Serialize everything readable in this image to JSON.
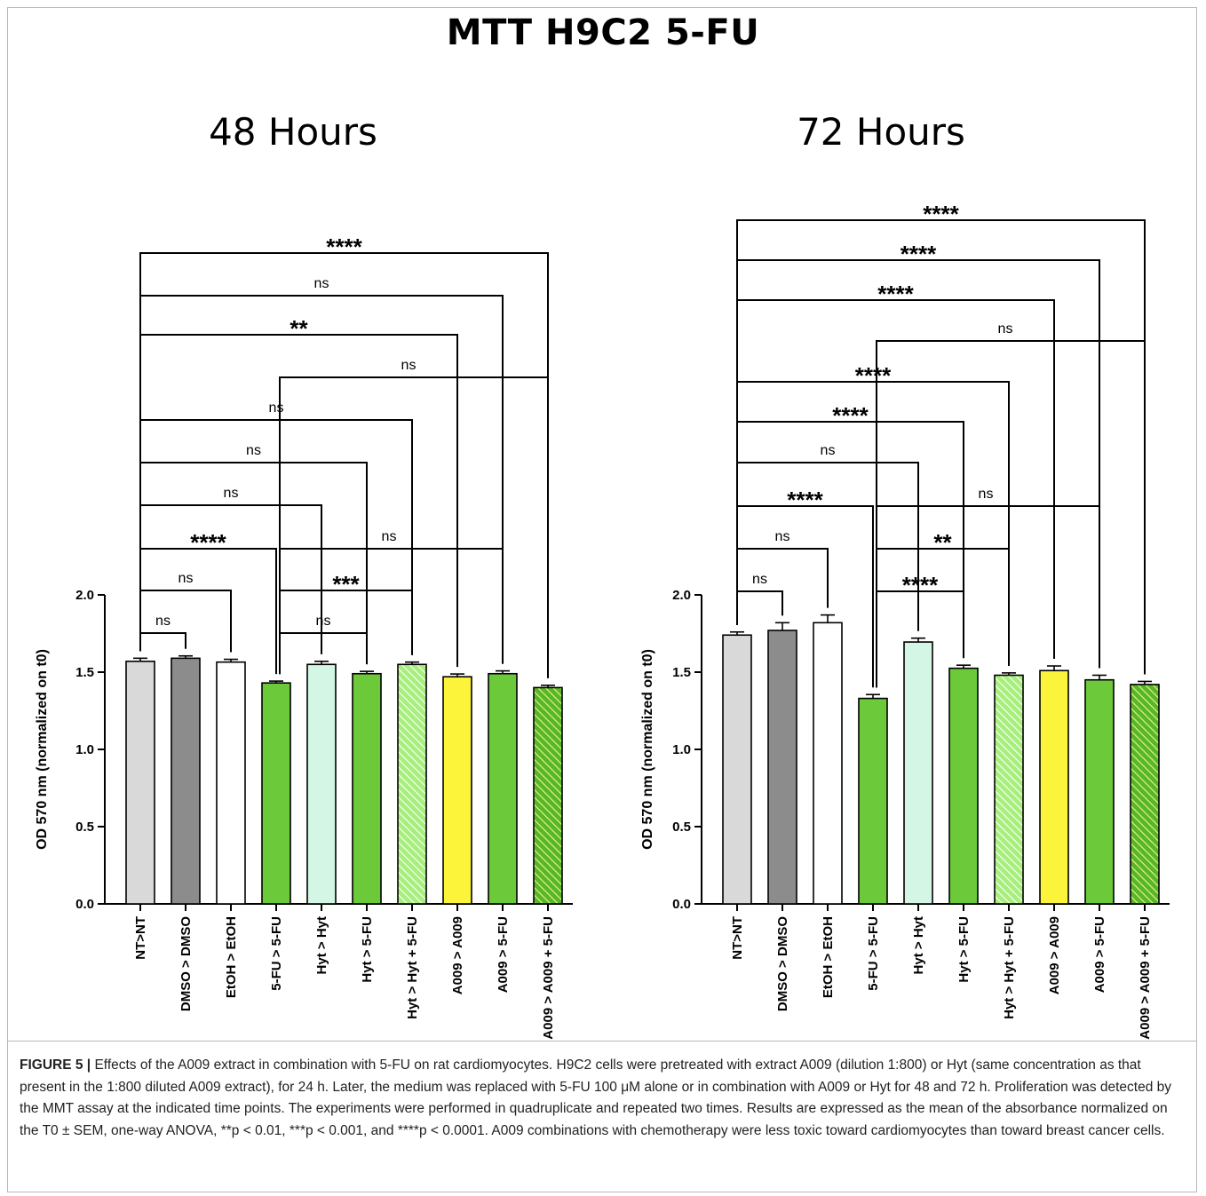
{
  "figure": {
    "title": "MTT H9C2 5-FU",
    "caption_label": "FIGURE 5 |",
    "caption_text": "Effects of the A009 extract in combination with 5-FU on rat cardiomyocytes. H9C2 cells were pretreated with extract A009 (dilution 1:800) or Hyt (same concentration as that present in the 1:800 diluted A009 extract), for 24 h. Later, the medium was replaced with 5-FU 100 μM alone or in combination with A009 or Hyt for 48 and 72 h. Proliferation was detected by the MMT assay at the indicated time points. The experiments were performed in quadruplicate and repeated two times. Results are expressed as the mean of the absorbance normalized on the T0 ± SEM, one-way ANOVA, **p < 0.01, ***p < 0.001, and ****p < 0.0001. A009 combinations with chemotherapy were less toxic toward cardiomyocytes than toward breast cancer cells."
  },
  "colors": {
    "light_gray": "#d9d9d9",
    "dark_gray": "#8c8c8c",
    "white": "#ffffff",
    "green": "#6bc93a",
    "mint": "#d4f6e4",
    "yellow": "#fbf43b",
    "hatch_green_light": "#a7ef7c",
    "hatch_green_dark": "#56b829"
  },
  "chart_data": [
    {
      "type": "bar",
      "title": "48 Hours",
      "ylabel": "OD 570 nm (normalized on t0)",
      "ylim": [
        0,
        2.0
      ],
      "yticks": [
        "0.0",
        "0.5",
        "1.0",
        "1.5",
        "2.0"
      ],
      "categories": [
        "NT>NT",
        "DMSO > DMSO",
        "EtOH > EtOH",
        "5-FU > 5-FU",
        "Hyt > Hyt",
        "Hyt > 5-FU",
        "Hyt > Hyt + 5-FU",
        "A009 > A009",
        "A009 > 5-FU",
        "A009 > A009 + 5-FU"
      ],
      "values": [
        1.57,
        1.59,
        1.565,
        1.43,
        1.55,
        1.49,
        1.55,
        1.47,
        1.49,
        1.4
      ],
      "errors": [
        0.02,
        0.015,
        0.018,
        0.012,
        0.02,
        0.015,
        0.015,
        0.018,
        0.018,
        0.015
      ],
      "fills": [
        "light_gray",
        "dark_gray",
        "white",
        "green",
        "mint",
        "green",
        "hatch_green_light",
        "yellow",
        "green",
        "hatch_green_dark"
      ],
      "comparisons": [
        {
          "from": 0,
          "to": 1,
          "label": "ns"
        },
        {
          "from": 0,
          "to": 2,
          "label": "ns"
        },
        {
          "from": 0,
          "to": 3,
          "label": "****"
        },
        {
          "from": 0,
          "to": 4,
          "label": "ns"
        },
        {
          "from": 0,
          "to": 5,
          "label": "ns"
        },
        {
          "from": 0,
          "to": 6,
          "label": "ns"
        },
        {
          "from": 0,
          "to": 7,
          "label": "**"
        },
        {
          "from": 0,
          "to": 8,
          "label": "ns"
        },
        {
          "from": 0,
          "to": 9,
          "label": "****"
        },
        {
          "from": 3,
          "to": 5,
          "label": "ns"
        },
        {
          "from": 3,
          "to": 6,
          "label": "***"
        },
        {
          "from": 3,
          "to": 8,
          "label": "ns"
        },
        {
          "from": 3,
          "to": 9,
          "label": "ns"
        }
      ]
    },
    {
      "type": "bar",
      "title": "72 Hours",
      "ylabel": "OD 570 nm (normalized on t0)",
      "ylim": [
        0,
        2.0
      ],
      "yticks": [
        "0.0",
        "0.5",
        "1.0",
        "1.5",
        "2.0"
      ],
      "categories": [
        "NT>NT",
        "DMSO > DMSO",
        "EtOH > EtOH",
        "5-FU > 5-FU",
        "Hyt > Hyt",
        "Hyt > 5-FU",
        "Hyt > Hyt + 5-FU",
        "A009 > A009",
        "A009 > 5-FU",
        "A009 > A009 + 5-FU"
      ],
      "values": [
        1.74,
        1.77,
        1.82,
        1.33,
        1.695,
        1.525,
        1.48,
        1.51,
        1.45,
        1.42
      ],
      "errors": [
        0.02,
        0.05,
        0.05,
        0.025,
        0.025,
        0.02,
        0.015,
        0.03,
        0.03,
        0.02
      ],
      "fills": [
        "light_gray",
        "dark_gray",
        "white",
        "green",
        "mint",
        "green",
        "hatch_green_light",
        "yellow",
        "green",
        "hatch_green_dark"
      ],
      "comparisons": [
        {
          "from": 0,
          "to": 1,
          "label": "ns"
        },
        {
          "from": 0,
          "to": 2,
          "label": "ns"
        },
        {
          "from": 0,
          "to": 3,
          "label": "****"
        },
        {
          "from": 0,
          "to": 4,
          "label": "ns"
        },
        {
          "from": 0,
          "to": 5,
          "label": "****"
        },
        {
          "from": 0,
          "to": 6,
          "label": "****"
        },
        {
          "from": 0,
          "to": 7,
          "label": "****"
        },
        {
          "from": 0,
          "to": 8,
          "label": "****"
        },
        {
          "from": 0,
          "to": 9,
          "label": "****"
        },
        {
          "from": 3,
          "to": 5,
          "label": "****"
        },
        {
          "from": 3,
          "to": 6,
          "label": "**"
        },
        {
          "from": 3,
          "to": 8,
          "label": "ns"
        },
        {
          "from": 3,
          "to": 9,
          "label": "ns"
        }
      ]
    }
  ]
}
